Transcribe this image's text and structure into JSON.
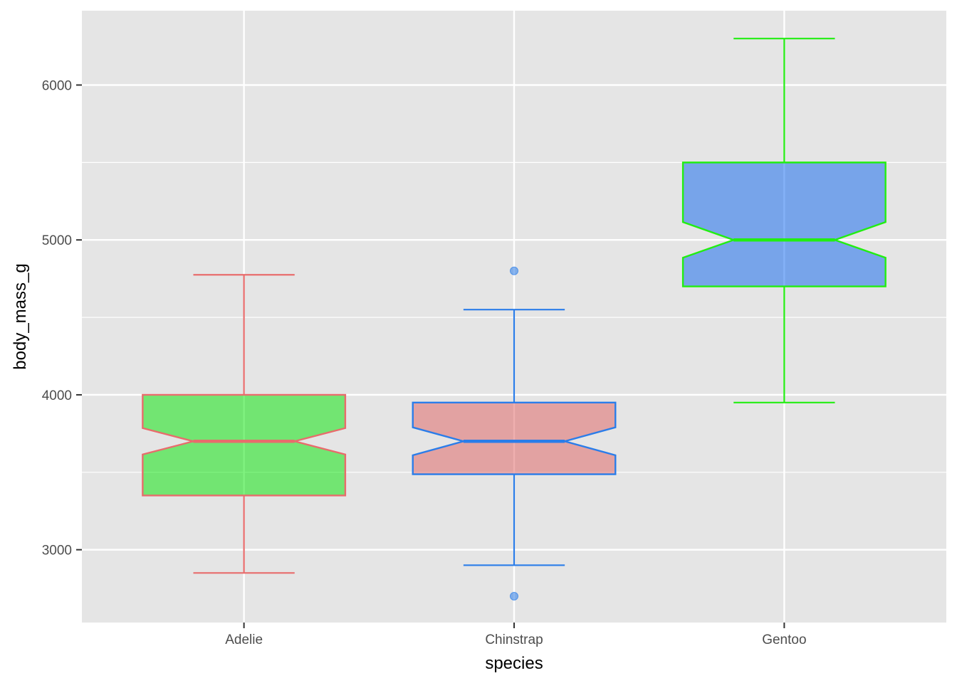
{
  "chart_data": {
    "type": "boxplot",
    "notched": true,
    "xlabel": "species",
    "ylabel": "body_mass_g",
    "categories": [
      "Adelie",
      "Chinstrap",
      "Gentoo"
    ],
    "yticks": [
      3000,
      4000,
      5000,
      6000
    ],
    "ylim": [
      2530,
      6480
    ],
    "grid": true,
    "legend": "none",
    "boxes": [
      {
        "category": "Adelie",
        "whisker_low": 2850,
        "q1": 3350,
        "median": 3700,
        "q3": 4000,
        "whisker_high": 4775,
        "notch_low": 3615,
        "notch_high": 3785,
        "outliers": [],
        "fill": "#00e600",
        "stroke": "#e86c6c"
      },
      {
        "category": "Chinstrap",
        "whisker_low": 2900,
        "q1": 3487.5,
        "median": 3700,
        "q3": 3950,
        "whisker_high": 4550,
        "notch_low": 3610,
        "notch_high": 3790,
        "outliers": [
          2700,
          4800
        ],
        "fill": "#e06060",
        "stroke": "#2b7de9"
      },
      {
        "category": "Gentoo",
        "whisker_low": 3950,
        "q1": 4700,
        "median": 5000,
        "q3": 5500,
        "whisker_high": 6300,
        "notch_low": 4885,
        "notch_high": 5115,
        "outliers": [],
        "fill": "#0a64f0",
        "stroke": "#22ee11"
      }
    ]
  }
}
